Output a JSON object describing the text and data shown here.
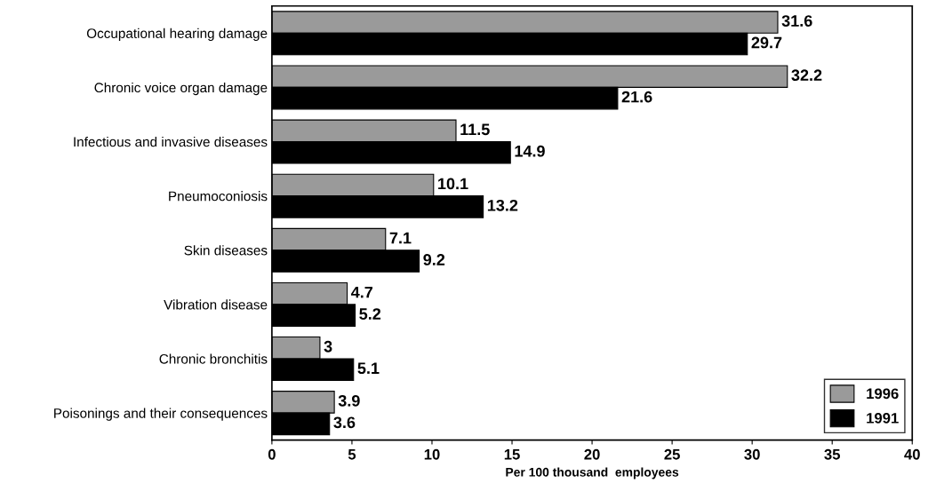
{
  "chart_data": {
    "type": "bar",
    "orientation": "horizontal",
    "xlabel": "Per 100 thousand  employees",
    "categories": [
      "Occupational hearing damage",
      "Chronic voice organ damage",
      "Infectious and invasive diseases",
      "Pneumoconiosis",
      "Skin diseases",
      "Vibration disease",
      "Chronic bronchitis",
      "Poisonings and their consequences"
    ],
    "series": [
      {
        "name": "1996",
        "color": "#9a9a9a",
        "values": [
          31.6,
          32.2,
          11.5,
          10.1,
          7.1,
          4.7,
          3,
          3.9
        ]
      },
      {
        "name": "1991",
        "color": "#000000",
        "values": [
          29.7,
          21.6,
          14.9,
          13.2,
          9.2,
          5.2,
          5.1,
          3.6
        ]
      }
    ],
    "xlim": [
      0,
      40
    ],
    "xticks": [
      0,
      5,
      10,
      15,
      20,
      25,
      30,
      35,
      40
    ],
    "data_labels": true,
    "legend": "bottom right",
    "grid": false
  }
}
